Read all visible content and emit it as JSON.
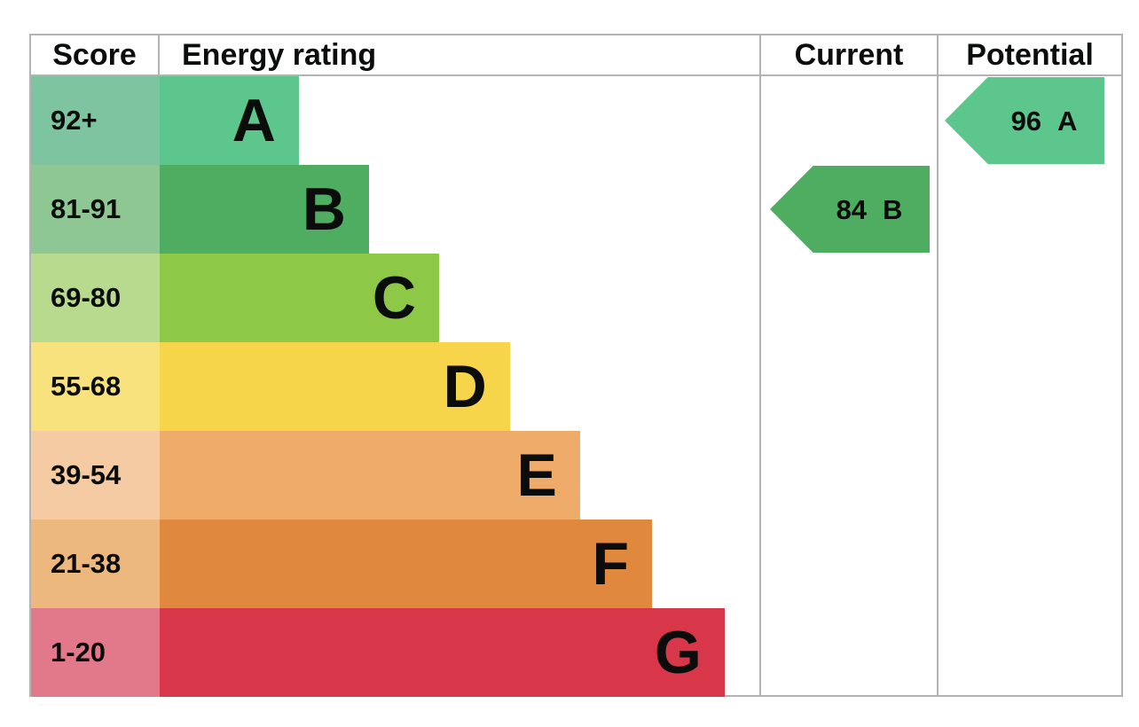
{
  "header": {
    "score": "Score",
    "energy_rating": "Energy rating",
    "current": "Current",
    "potential": "Potential"
  },
  "chart_data": {
    "type": "bar",
    "description": "EPC energy efficiency rating chart with score bands A-G",
    "bands": [
      {
        "label": "A",
        "score_range": "92+",
        "bar_color": "#5cc68c",
        "score_color": "#7ec4a0",
        "bar_width_pct": 23.2
      },
      {
        "label": "B",
        "score_range": "81-91",
        "bar_color": "#4fad61",
        "score_color": "#8fc794",
        "bar_width_pct": 34.9
      },
      {
        "label": "C",
        "score_range": "69-80",
        "bar_color": "#8dc846",
        "score_color": "#b8da8e",
        "bar_width_pct": 46.6
      },
      {
        "label": "D",
        "score_range": "55-68",
        "bar_color": "#f7d54a",
        "score_color": "#f8e27d",
        "bar_width_pct": 58.4
      },
      {
        "label": "E",
        "score_range": "39-54",
        "bar_color": "#efab69",
        "score_color": "#f4cba3",
        "bar_width_pct": 70.1
      },
      {
        "label": "F",
        "score_range": "21-38",
        "bar_color": "#e0883e",
        "score_color": "#ecb87e",
        "bar_width_pct": 82.1
      },
      {
        "label": "G",
        "score_range": "1-20",
        "bar_color": "#d8374a",
        "score_color": "#e2798a",
        "bar_width_pct": 94.2
      }
    ],
    "current": {
      "score": "84",
      "rating": "B",
      "color": "#4fad61"
    },
    "potential": {
      "score": "96",
      "rating": "A",
      "color": "#5cc68c"
    }
  }
}
